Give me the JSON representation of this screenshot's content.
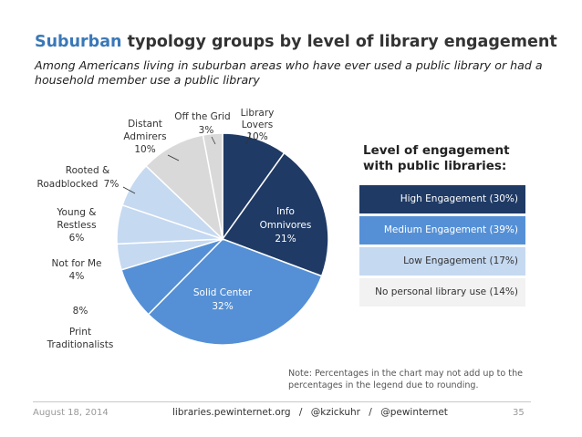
{
  "title_highlight": "Suburban",
  "title_rest": " typology groups by level of library engagement",
  "subtitle": "Among Americans living in suburban areas who have ever used a public library or had a household member use a public library",
  "chart_data": {
    "type": "pie",
    "slices": [
      {
        "label": "Library Lovers",
        "value": 10,
        "display": "10%",
        "group": "High Engagement",
        "color": "#1f3a64"
      },
      {
        "label": "Info Omnivores",
        "value": 21,
        "display": "21%",
        "group": "High Engagement",
        "color": "#1f3a64"
      },
      {
        "label": "Solid Center",
        "value": 32,
        "display": "32%",
        "group": "Medium Engagement",
        "color": "#5590d6"
      },
      {
        "label": "Print Traditionalists",
        "value": 8,
        "display": "8%",
        "group": "Medium Engagement",
        "color": "#5590d6"
      },
      {
        "label": "Not for Me",
        "value": 4,
        "display": "4%",
        "group": "Low Engagement",
        "color": "#c5d9f1"
      },
      {
        "label": "Young & Restless",
        "value": 6,
        "display": "6%",
        "group": "Low Engagement",
        "color": "#c5d9f1"
      },
      {
        "label": "Rooted & Roadblocked",
        "value": 7,
        "display": "7%",
        "group": "Low Engagement",
        "color": "#c5d9f1"
      },
      {
        "label": "Distant Admirers",
        "value": 10,
        "display": "10%",
        "group": "No personal library use",
        "color": "#d9d9d9"
      },
      {
        "label": "Off the Grid",
        "value": 3,
        "display": "3%",
        "group": "No personal library use",
        "color": "#d9d9d9"
      }
    ],
    "legend_title_1": "Level of engagement",
    "legend_title_2": "with public libraries:",
    "legend": [
      {
        "label": "High Engagement (30%)",
        "color": "#1f3a64",
        "text_color": "#ffffff"
      },
      {
        "label": "Medium Engagement (39%)",
        "color": "#5590d6",
        "text_color": "#ffffff"
      },
      {
        "label": "Low Engagement (17%)",
        "color": "#c5d9f1",
        "text_color": "#333333"
      },
      {
        "label": "No personal library use (14%)",
        "color": "#f2f2f2",
        "text_color": "#333333"
      }
    ]
  },
  "note": "Note: Percentages in the chart may not add up to the percentages in the legend due to rounding.",
  "footer": {
    "date": "August 18, 2014",
    "site": "libraries.pewinternet.org",
    "sep": "/",
    "handle1": "@kzickuhr",
    "handle2": "@pewinternet",
    "page": "35"
  }
}
